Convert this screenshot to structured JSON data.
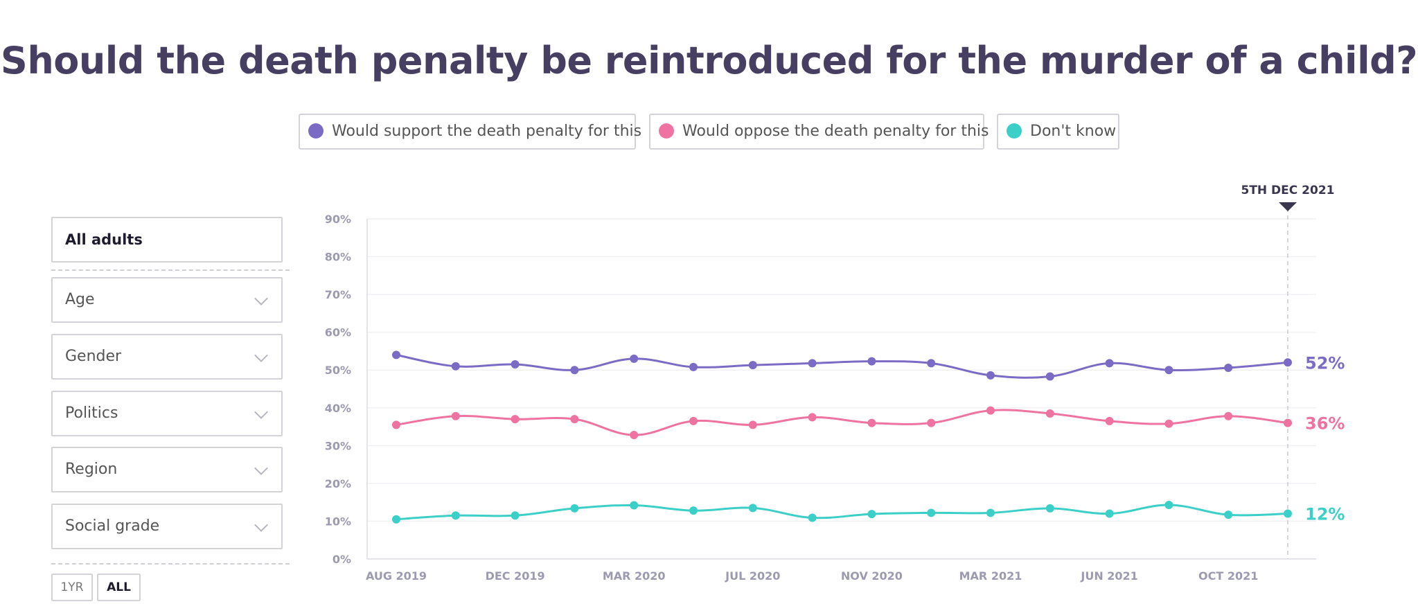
{
  "title": "Should the death penalty be reintroduced for the murder of a child?",
  "legend": [
    {
      "label": "Would support the death penalty for this",
      "color": "#7b6bc4"
    },
    {
      "label": "Would oppose the death penalty for this",
      "color": "#ee73a0"
    },
    {
      "label": "Don't know",
      "color": "#3ccfc8"
    }
  ],
  "filters": {
    "selected": "All adults",
    "dropdowns": [
      "Age",
      "Gender",
      "Politics",
      "Region",
      "Social grade"
    ]
  },
  "time_range": {
    "options": [
      "1YR",
      "ALL"
    ],
    "active": "ALL"
  },
  "chart_data": {
    "type": "line",
    "title": "Should the death penalty be reintroduced for the murder of a child?",
    "marker_date": "5TH DEC 2021",
    "ylim": [
      0,
      90
    ],
    "yticks": [
      "0%",
      "10%",
      "20%",
      "30%",
      "40%",
      "50%",
      "60%",
      "70%",
      "80%",
      "90%"
    ],
    "xtick_labels": [
      "AUG 2019",
      "DEC 2019",
      "MAR 2020",
      "JUL 2020",
      "NOV 2020",
      "MAR 2021",
      "JUN 2021",
      "OCT 2021"
    ],
    "x": [
      "2019-08",
      "2019-10",
      "2019-12",
      "2020-02",
      "2020-04",
      "2020-06",
      "2020-08",
      "2020-10",
      "2020-12",
      "2021-02",
      "2021-04",
      "2021-05",
      "2021-07",
      "2021-09",
      "2021-10",
      "2021-12-05"
    ],
    "xtick_positions": [
      0,
      2,
      4,
      6,
      8,
      10,
      12,
      14
    ],
    "series": [
      {
        "name": "Would support the death penalty for this",
        "color": "#7b6bc4",
        "end_label": "52%",
        "values": [
          54,
          51,
          51.5,
          50,
          53,
          50.8,
          51.3,
          51.8,
          52.3,
          51.8,
          48.6,
          48.3,
          51.8,
          50,
          50.6,
          52
        ]
      },
      {
        "name": "Would oppose the death penalty for this",
        "color": "#ee73a0",
        "end_label": "36%",
        "values": [
          35.5,
          37.8,
          37,
          37,
          32.8,
          36.5,
          35.5,
          37.5,
          36,
          36,
          39.3,
          38.5,
          36.5,
          35.8,
          37.8,
          36
        ]
      },
      {
        "name": "Don't know",
        "color": "#3ccfc8",
        "end_label": "12%",
        "values": [
          10.5,
          11.5,
          11.5,
          13.4,
          14.2,
          12.8,
          13.5,
          10.9,
          11.9,
          12.2,
          12.2,
          13.4,
          12,
          14.3,
          11.7,
          12
        ]
      }
    ]
  }
}
